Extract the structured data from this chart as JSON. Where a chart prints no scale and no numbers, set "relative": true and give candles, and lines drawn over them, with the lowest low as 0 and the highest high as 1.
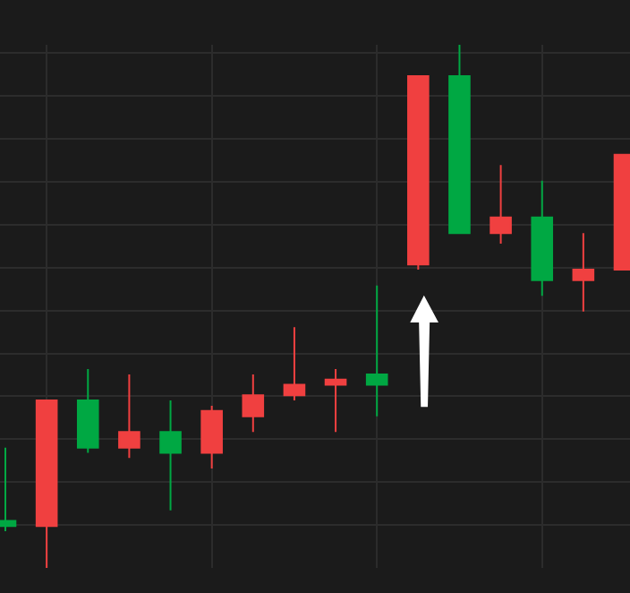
{
  "chart_data": {
    "type": "candlestick",
    "relative": true,
    "grid": true,
    "categories": [
      null,
      null,
      null,
      null,
      null,
      null,
      null,
      null,
      null,
      null,
      null,
      null,
      null,
      null,
      null,
      null
    ],
    "ohlc": [
      [
        0.09,
        0.23,
        0.07,
        0.08
      ],
      [
        0.08,
        0.32,
        0.0,
        0.32
      ],
      [
        0.32,
        0.38,
        0.22,
        0.23
      ],
      [
        0.23,
        0.37,
        0.21,
        0.26
      ],
      [
        0.26,
        0.32,
        0.11,
        0.22
      ],
      [
        0.22,
        0.31,
        0.19,
        0.3
      ],
      [
        0.29,
        0.37,
        0.26,
        0.33
      ],
      [
        0.33,
        0.46,
        0.32,
        0.35
      ],
      [
        0.35,
        0.38,
        0.26,
        0.36
      ],
      [
        0.37,
        0.54,
        0.29,
        0.35
      ],
      [
        0.58,
        0.94,
        0.57,
        0.94
      ],
      [
        0.94,
        1.0,
        0.64,
        0.64
      ],
      [
        0.64,
        0.77,
        0.62,
        0.67
      ],
      [
        0.67,
        0.74,
        0.52,
        0.55
      ],
      [
        0.55,
        0.64,
        0.49,
        0.57
      ],
      [
        0.57,
        0.79,
        0.57,
        0.79
      ]
    ],
    "colors": [
      "#00a843",
      "#f04040",
      "#00a843",
      "#f04040",
      "#00a843",
      "#f04040",
      "#f04040",
      "#f04040",
      "#f04040",
      "#00a843",
      "#f04040",
      "#00a843",
      "#f04040",
      "#00a843",
      "#f04040",
      "#f04040"
    ]
  }
}
